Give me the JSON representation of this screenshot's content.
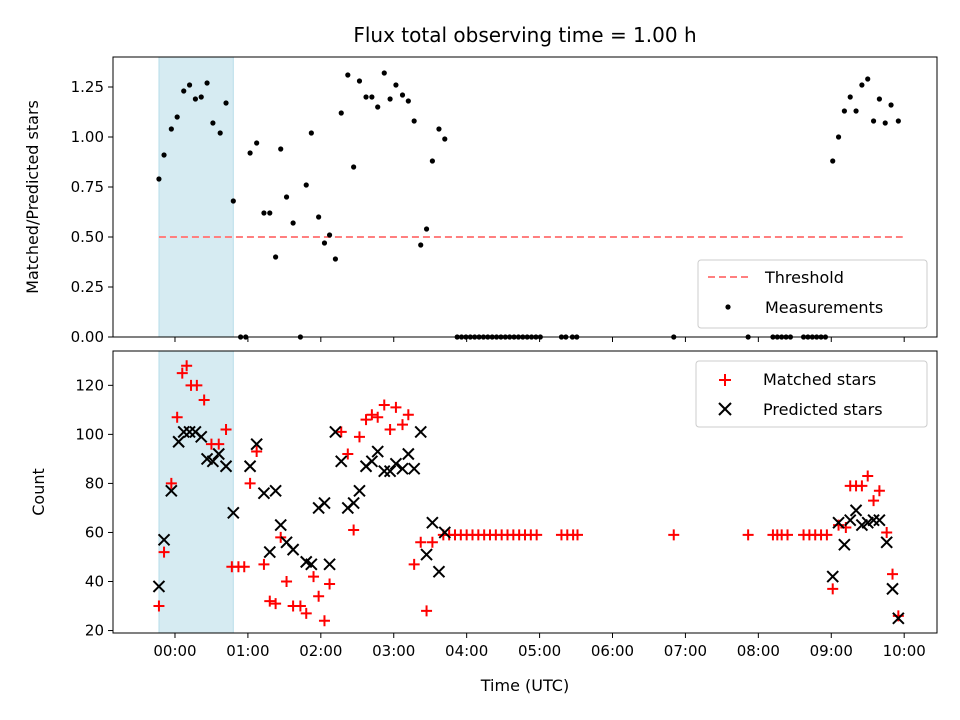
{
  "chart_data": [
    {
      "type": "scatter",
      "title": "Flux total observing time = 1.00 h",
      "xlabel": "",
      "ylabel": "Matched/Predicted stars",
      "x_unit": "hours UTC",
      "xlim": [
        -0.85,
        10.45
      ],
      "ylim": [
        0,
        1.4
      ],
      "yticks": [
        0.0,
        0.25,
        0.5,
        0.75,
        1.0,
        1.25
      ],
      "ytick_labels": [
        "0.00",
        "0.25",
        "0.50",
        "0.75",
        "1.00",
        "1.25"
      ],
      "legend": {
        "position": "lower-right",
        "entries": [
          "Threshold",
          "Measurements"
        ]
      },
      "shaded_interval": {
        "x_start": -0.22,
        "x_end": 0.8,
        "color": "#add8e6"
      },
      "threshold": {
        "name": "Threshold",
        "value": 0.5,
        "x_start": -0.22,
        "x_end": 9.98,
        "color": "#ff7f7f"
      },
      "series": [
        {
          "name": "Measurements",
          "color": "#000000",
          "points": [
            [
              -0.22,
              0.79
            ],
            [
              -0.15,
              0.91
            ],
            [
              -0.05,
              1.04
            ],
            [
              0.03,
              1.1
            ],
            [
              0.12,
              1.23
            ],
            [
              0.2,
              1.26
            ],
            [
              0.28,
              1.19
            ],
            [
              0.36,
              1.2
            ],
            [
              0.44,
              1.27
            ],
            [
              0.52,
              1.07
            ],
            [
              0.62,
              1.02
            ],
            [
              0.7,
              1.17
            ],
            [
              0.8,
              0.68
            ],
            [
              0.9,
              0.0
            ],
            [
              0.97,
              0.0
            ],
            [
              1.03,
              0.92
            ],
            [
              1.12,
              0.97
            ],
            [
              1.22,
              0.62
            ],
            [
              1.3,
              0.62
            ],
            [
              1.38,
              0.4
            ],
            [
              1.45,
              0.94
            ],
            [
              1.53,
              0.7
            ],
            [
              1.62,
              0.57
            ],
            [
              1.72,
              0.0
            ],
            [
              1.8,
              0.76
            ],
            [
              1.87,
              1.02
            ],
            [
              1.97,
              0.6
            ],
            [
              2.05,
              0.47
            ],
            [
              2.12,
              0.51
            ],
            [
              2.2,
              0.39
            ],
            [
              2.28,
              1.12
            ],
            [
              2.37,
              1.31
            ],
            [
              2.45,
              0.85
            ],
            [
              2.53,
              1.28
            ],
            [
              2.62,
              1.2
            ],
            [
              2.7,
              1.2
            ],
            [
              2.78,
              1.15
            ],
            [
              2.87,
              1.32
            ],
            [
              2.95,
              1.19
            ],
            [
              3.03,
              1.26
            ],
            [
              3.12,
              1.21
            ],
            [
              3.2,
              1.18
            ],
            [
              3.28,
              1.08
            ],
            [
              3.37,
              0.46
            ],
            [
              3.45,
              0.54
            ],
            [
              3.53,
              0.88
            ],
            [
              3.62,
              1.04
            ],
            [
              3.7,
              0.99
            ],
            [
              3.87,
              0.0
            ],
            [
              3.93,
              0.0
            ],
            [
              3.99,
              0.0
            ],
            [
              4.05,
              0.0
            ],
            [
              4.11,
              0.0
            ],
            [
              4.17,
              0.0
            ],
            [
              4.23,
              0.0
            ],
            [
              4.29,
              0.0
            ],
            [
              4.35,
              0.0
            ],
            [
              4.41,
              0.0
            ],
            [
              4.47,
              0.0
            ],
            [
              4.53,
              0.0
            ],
            [
              4.59,
              0.0
            ],
            [
              4.65,
              0.0
            ],
            [
              4.71,
              0.0
            ],
            [
              4.77,
              0.0
            ],
            [
              4.83,
              0.0
            ],
            [
              4.89,
              0.0
            ],
            [
              4.95,
              0.0
            ],
            [
              5.01,
              0.0
            ],
            [
              5.3,
              0.0
            ],
            [
              5.36,
              0.0
            ],
            [
              5.45,
              0.0
            ],
            [
              5.51,
              0.0
            ],
            [
              6.84,
              0.0
            ],
            [
              7.86,
              0.0
            ],
            [
              8.2,
              0.0
            ],
            [
              8.26,
              0.0
            ],
            [
              8.32,
              0.0
            ],
            [
              8.38,
              0.0
            ],
            [
              8.44,
              0.0
            ],
            [
              8.62,
              0.0
            ],
            [
              8.68,
              0.0
            ],
            [
              8.74,
              0.0
            ],
            [
              8.8,
              0.0
            ],
            [
              8.86,
              0.0
            ],
            [
              8.92,
              0.0
            ],
            [
              9.02,
              0.88
            ],
            [
              9.1,
              1.0
            ],
            [
              9.18,
              1.13
            ],
            [
              9.26,
              1.2
            ],
            [
              9.34,
              1.13
            ],
            [
              9.42,
              1.26
            ],
            [
              9.5,
              1.29
            ],
            [
              9.58,
              1.08
            ],
            [
              9.66,
              1.19
            ],
            [
              9.74,
              1.07
            ],
            [
              9.82,
              1.16
            ],
            [
              9.92,
              1.08
            ]
          ]
        }
      ]
    },
    {
      "type": "scatter",
      "title": "",
      "xlabel": "Time (UTC)",
      "ylabel": "Count",
      "x_unit": "hours UTC",
      "xlim": [
        -0.85,
        10.45
      ],
      "ylim": [
        19,
        134
      ],
      "yticks": [
        20,
        40,
        60,
        80,
        100,
        120
      ],
      "ytick_labels": [
        "20",
        "40",
        "60",
        "80",
        "100",
        "120"
      ],
      "xticks": [
        0,
        1,
        2,
        3,
        4,
        5,
        6,
        7,
        8,
        9,
        10
      ],
      "xtick_labels": [
        "00:00",
        "01:00",
        "02:00",
        "03:00",
        "04:00",
        "05:00",
        "06:00",
        "07:00",
        "08:00",
        "09:00",
        "10:00"
      ],
      "legend": {
        "position": "upper-right",
        "entries": [
          "Matched stars",
          "Predicted stars"
        ]
      },
      "shaded_interval": {
        "x_start": -0.22,
        "x_end": 0.8,
        "color": "#add8e6"
      },
      "series": [
        {
          "name": "Matched stars",
          "marker": "plus",
          "color": "#ff0000",
          "points": [
            [
              -0.22,
              30
            ],
            [
              -0.15,
              52
            ],
            [
              -0.05,
              80
            ],
            [
              0.03,
              107
            ],
            [
              0.1,
              125
            ],
            [
              0.16,
              128
            ],
            [
              0.22,
              120
            ],
            [
              0.3,
              120
            ],
            [
              0.4,
              114
            ],
            [
              0.5,
              96
            ],
            [
              0.6,
              96
            ],
            [
              0.7,
              102
            ],
            [
              0.78,
              46
            ],
            [
              0.87,
              46
            ],
            [
              0.95,
              46
            ],
            [
              1.03,
              80
            ],
            [
              1.12,
              93
            ],
            [
              1.22,
              47
            ],
            [
              1.3,
              32
            ],
            [
              1.38,
              31
            ],
            [
              1.45,
              58
            ],
            [
              1.53,
              40
            ],
            [
              1.62,
              30
            ],
            [
              1.72,
              30
            ],
            [
              1.8,
              27
            ],
            [
              1.9,
              42
            ],
            [
              1.97,
              34
            ],
            [
              2.05,
              24
            ],
            [
              2.12,
              39
            ],
            [
              2.28,
              101
            ],
            [
              2.37,
              92
            ],
            [
              2.45,
              61
            ],
            [
              2.53,
              99
            ],
            [
              2.62,
              106
            ],
            [
              2.7,
              108
            ],
            [
              2.78,
              107
            ],
            [
              2.87,
              112
            ],
            [
              2.95,
              102
            ],
            [
              3.03,
              111
            ],
            [
              3.12,
              104
            ],
            [
              3.2,
              108
            ],
            [
              3.28,
              47
            ],
            [
              3.37,
              56
            ],
            [
              3.45,
              28
            ],
            [
              3.53,
              56
            ],
            [
              3.68,
              59
            ],
            [
              3.76,
              59
            ],
            [
              3.84,
              59
            ],
            [
              3.92,
              59
            ],
            [
              4.0,
              59
            ],
            [
              4.08,
              59
            ],
            [
              4.16,
              59
            ],
            [
              4.24,
              59
            ],
            [
              4.32,
              59
            ],
            [
              4.4,
              59
            ],
            [
              4.48,
              59
            ],
            [
              4.56,
              59
            ],
            [
              4.64,
              59
            ],
            [
              4.72,
              59
            ],
            [
              4.8,
              59
            ],
            [
              4.88,
              59
            ],
            [
              4.96,
              59
            ],
            [
              5.3,
              59
            ],
            [
              5.38,
              59
            ],
            [
              5.46,
              59
            ],
            [
              5.52,
              59
            ],
            [
              6.84,
              59
            ],
            [
              7.86,
              59
            ],
            [
              8.2,
              59
            ],
            [
              8.26,
              59
            ],
            [
              8.32,
              59
            ],
            [
              8.4,
              59
            ],
            [
              8.62,
              59
            ],
            [
              8.7,
              59
            ],
            [
              8.78,
              59
            ],
            [
              8.86,
              59
            ],
            [
              8.94,
              59
            ],
            [
              9.02,
              37
            ],
            [
              9.1,
              63
            ],
            [
              9.2,
              62
            ],
            [
              9.26,
              79
            ],
            [
              9.34,
              79
            ],
            [
              9.42,
              79
            ],
            [
              9.5,
              83
            ],
            [
              9.58,
              73
            ],
            [
              9.66,
              77
            ],
            [
              9.76,
              60
            ],
            [
              9.84,
              43
            ],
            [
              9.92,
              26
            ]
          ]
        },
        {
          "name": "Predicted stars",
          "marker": "x",
          "color": "#000000",
          "points": [
            [
              -0.22,
              38
            ],
            [
              -0.15,
              57
            ],
            [
              -0.05,
              77
            ],
            [
              0.05,
              97
            ],
            [
              0.12,
              101
            ],
            [
              0.2,
              101
            ],
            [
              0.28,
              101
            ],
            [
              0.36,
              99
            ],
            [
              0.44,
              90
            ],
            [
              0.52,
              89
            ],
            [
              0.6,
              92
            ],
            [
              0.7,
              87
            ],
            [
              0.8,
              68
            ],
            [
              1.03,
              87
            ],
            [
              1.12,
              96
            ],
            [
              1.22,
              76
            ],
            [
              1.3,
              52
            ],
            [
              1.38,
              77
            ],
            [
              1.45,
              63
            ],
            [
              1.53,
              56
            ],
            [
              1.62,
              53
            ],
            [
              1.8,
              48
            ],
            [
              1.87,
              47
            ],
            [
              1.97,
              70
            ],
            [
              2.05,
              72
            ],
            [
              2.12,
              47
            ],
            [
              2.2,
              101
            ],
            [
              2.28,
              89
            ],
            [
              2.37,
              70
            ],
            [
              2.45,
              72
            ],
            [
              2.53,
              77
            ],
            [
              2.62,
              87
            ],
            [
              2.7,
              89
            ],
            [
              2.78,
              93
            ],
            [
              2.87,
              85
            ],
            [
              2.95,
              85
            ],
            [
              3.03,
              88
            ],
            [
              3.12,
              86
            ],
            [
              3.2,
              92
            ],
            [
              3.28,
              86
            ],
            [
              3.37,
              101
            ],
            [
              3.45,
              51
            ],
            [
              3.53,
              64
            ],
            [
              3.62,
              44
            ],
            [
              3.7,
              60
            ],
            [
              9.02,
              42
            ],
            [
              9.1,
              64
            ],
            [
              9.18,
              55
            ],
            [
              9.26,
              65
            ],
            [
              9.34,
              69
            ],
            [
              9.42,
              63
            ],
            [
              9.5,
              64
            ],
            [
              9.58,
              65
            ],
            [
              9.66,
              65
            ],
            [
              9.76,
              56
            ],
            [
              9.84,
              37
            ],
            [
              9.92,
              25
            ]
          ]
        }
      ]
    }
  ]
}
